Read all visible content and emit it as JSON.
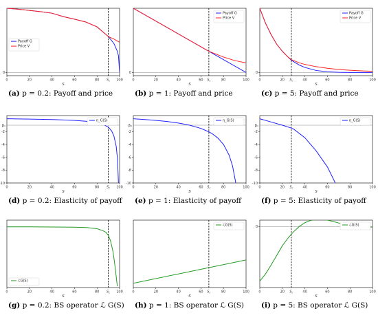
{
  "colors": {
    "blue": "#1f1fff",
    "red": "#ff2020",
    "green": "#229922",
    "grey": "#888888"
  },
  "chart_data": [
    {
      "type": "line",
      "caption": {
        "letter": "(a)",
        "text": "p = 0.2: Payoff and price"
      },
      "xlabel": "S",
      "xlim": [
        0,
        100
      ],
      "ylim": [
        -0.05,
        1.0
      ],
      "xticks": [
        0,
        20,
        40,
        60,
        80,
        100
      ],
      "xtick_labels": [
        "0",
        "20",
        "40",
        "60",
        "80",
        "100"
      ],
      "yticks": [
        0
      ],
      "ytick_labels": [
        "0"
      ],
      "hline": 0,
      "vline": {
        "x": 90,
        "label": "S_c"
      },
      "legend": {
        "position": "middle-left",
        "entries": [
          "Payoff G",
          "Price V"
        ]
      },
      "series": [
        {
          "name": "Payoff G",
          "color": "blue",
          "x": [
            0,
            10,
            20,
            30,
            40,
            50,
            60,
            70,
            80,
            90,
            95,
            98,
            99,
            100
          ],
          "y": [
            1.0,
            0.985,
            0.966,
            0.946,
            0.923,
            0.87,
            0.83,
            0.786,
            0.71,
            0.56,
            0.45,
            0.33,
            0.26,
            0
          ]
        },
        {
          "name": "Price V",
          "color": "red",
          "x": [
            0,
            10,
            20,
            30,
            40,
            50,
            60,
            70,
            80,
            90,
            95,
            100
          ],
          "y": [
            1.0,
            0.985,
            0.966,
            0.946,
            0.923,
            0.87,
            0.83,
            0.786,
            0.71,
            0.56,
            0.52,
            0.47
          ]
        }
      ]
    },
    {
      "type": "line",
      "caption": {
        "letter": "(b)",
        "text": "p = 1: Payoff and price"
      },
      "xlabel": "S",
      "xlim": [
        0,
        100
      ],
      "ylim": [
        -0.05,
        1.0
      ],
      "xticks": [
        0,
        20,
        40,
        60,
        80,
        100
      ],
      "xtick_labels": [
        "0",
        "20",
        "40",
        "60",
        "80",
        "100"
      ],
      "yticks": [
        0
      ],
      "ytick_labels": [
        "0"
      ],
      "hline": 0,
      "vline": {
        "x": 67,
        "label": "S_c"
      },
      "legend": {
        "position": "top-right",
        "entries": [
          "Payoff G",
          "Price V"
        ]
      },
      "series": [
        {
          "name": "Payoff G",
          "color": "blue",
          "x": [
            0,
            67,
            100
          ],
          "y": [
            1.0,
            0.33,
            0.0
          ]
        },
        {
          "name": "Price V",
          "color": "red",
          "x": [
            0,
            67,
            80,
            90,
            100
          ],
          "y": [
            1.0,
            0.33,
            0.24,
            0.185,
            0.15
          ]
        }
      ]
    },
    {
      "type": "line",
      "caption": {
        "letter": "(c)",
        "text": "p = 5: Payoff and price"
      },
      "xlabel": "S",
      "xlim": [
        0,
        100
      ],
      "ylim": [
        -0.05,
        1.0
      ],
      "xticks": [
        0,
        20,
        40,
        60,
        80,
        100
      ],
      "xtick_labels": [
        "0",
        "20",
        "40",
        "60",
        "80",
        "100"
      ],
      "yticks": [
        0
      ],
      "ytick_labels": [
        "0"
      ],
      "hline": 0,
      "vline": {
        "x": 28,
        "label": "S_c"
      },
      "legend": {
        "position": "top-right",
        "entries": [
          "Payoff G",
          "Price V"
        ]
      },
      "series": [
        {
          "name": "Payoff G",
          "color": "blue",
          "x": [
            0,
            5,
            10,
            15,
            20,
            25,
            28,
            35,
            40,
            50,
            60,
            70,
            80,
            90,
            100
          ],
          "y": [
            1.0,
            0.77,
            0.59,
            0.44,
            0.33,
            0.24,
            0.19,
            0.116,
            0.078,
            0.031,
            0.01,
            0.002,
            0.0,
            0.0,
            0.0
          ]
        },
        {
          "name": "Price V",
          "color": "red",
          "x": [
            0,
            5,
            10,
            15,
            20,
            25,
            28,
            35,
            40,
            50,
            60,
            70,
            80,
            90,
            100
          ],
          "y": [
            1.0,
            0.77,
            0.59,
            0.44,
            0.33,
            0.24,
            0.2,
            0.15,
            0.125,
            0.09,
            0.065,
            0.047,
            0.034,
            0.025,
            0.018
          ]
        }
      ]
    },
    {
      "type": "line",
      "caption": {
        "letter": "(d)",
        "text": "p = 0.2: Elasticity of payoff"
      },
      "xlabel": "S",
      "xlim": [
        0,
        100
      ],
      "ylim": [
        -10,
        0.5
      ],
      "xticks": [
        0,
        20,
        40,
        60,
        80,
        100
      ],
      "xtick_labels": [
        "0",
        "20",
        "40",
        "60",
        "80",
        "100"
      ],
      "yticks": [
        -10,
        -8,
        -6,
        -4,
        -2
      ],
      "ytick_labels": [
        "-10",
        "-8",
        "-6",
        "-4",
        "-2"
      ],
      "hline": -1,
      "hline_label": "β₁",
      "vline": {
        "x": 90,
        "label": "S_c"
      },
      "legend": {
        "position": "top-right",
        "entries": [
          "η_G(S)"
        ]
      },
      "series": [
        {
          "name": "η_G(S)",
          "color": "blue",
          "x": [
            0,
            20,
            40,
            60,
            70,
            80,
            85,
            90,
            93,
            95,
            97,
            98,
            98.5,
            99
          ],
          "y": [
            0,
            -0.05,
            -0.12,
            -0.25,
            -0.38,
            -0.62,
            -0.85,
            -1.3,
            -1.9,
            -2.7,
            -4.3,
            -6.0,
            -7.8,
            -10
          ]
        }
      ]
    },
    {
      "type": "line",
      "caption": {
        "letter": "(e)",
        "text": "p = 1: Elasticity of payoff"
      },
      "xlabel": "S",
      "xlim": [
        0,
        100
      ],
      "ylim": [
        -10,
        0.5
      ],
      "xticks": [
        0,
        20,
        40,
        60,
        80,
        100
      ],
      "xtick_labels": [
        "0",
        "20",
        "40",
        "60",
        "80",
        "100"
      ],
      "yticks": [
        -10,
        -8,
        -6,
        -4,
        -2
      ],
      "ytick_labels": [
        "-10",
        "-8",
        "-6",
        "-4",
        "-2"
      ],
      "hline": -1,
      "hline_label": "β₁",
      "vline": {
        "x": 67,
        "label": "S_c"
      },
      "legend": {
        "position": "top-right",
        "entries": [
          "η_G(S)"
        ]
      },
      "series": [
        {
          "name": "η_G(S)",
          "color": "blue",
          "x": [
            0,
            10,
            20,
            30,
            40,
            50,
            60,
            67,
            70,
            75,
            80,
            85,
            88,
            90.9
          ],
          "y": [
            0,
            -0.11,
            -0.25,
            -0.43,
            -0.67,
            -1.0,
            -1.5,
            -2.03,
            -2.33,
            -3.0,
            -4.0,
            -5.67,
            -7.33,
            -10
          ]
        }
      ]
    },
    {
      "type": "line",
      "caption": {
        "letter": "(f)",
        "text": "p = 5: Elasticity of payoff"
      },
      "xlabel": "S",
      "xlim": [
        0,
        100
      ],
      "ylim": [
        -10,
        0.5
      ],
      "xticks": [
        0,
        20,
        40,
        60,
        80,
        100
      ],
      "xtick_labels": [
        "0",
        "20",
        "40",
        "60",
        "80",
        "100"
      ],
      "yticks": [
        -10,
        -8,
        -6,
        -4,
        -2
      ],
      "ytick_labels": [
        "-10",
        "-8",
        "-6",
        "-4",
        "-2"
      ],
      "hline": -1,
      "hline_label": "β₁",
      "vline": {
        "x": 28,
        "label": "S_c"
      },
      "legend": {
        "position": "top-right",
        "entries": [
          "η_G(S)"
        ]
      },
      "series": [
        {
          "name": "η_G(S)",
          "color": "blue",
          "x": [
            0,
            10,
            20,
            28,
            30,
            40,
            50,
            60,
            67
          ],
          "y": [
            0,
            -0.5,
            -1.0,
            -1.45,
            -1.6,
            -2.95,
            -5.0,
            -7.5,
            -10
          ]
        }
      ]
    },
    {
      "type": "line",
      "caption": {
        "letter": "(g)",
        "text": "p = 0.2: BS operator ℒ G(S)"
      },
      "xlabel": "S",
      "xlim": [
        0,
        100
      ],
      "ylim": [
        -1,
        0.1
      ],
      "xticks": [
        0,
        20,
        40,
        60,
        80,
        100
      ],
      "xtick_labels": [
        "0",
        "20",
        "40",
        "60",
        "80",
        "100"
      ],
      "yticks": [],
      "ytick_labels": [],
      "vline": {
        "x": 90,
        "label": "S_c"
      },
      "legend": {
        "position": "bottom-left",
        "entries": [
          "ℒG(S)"
        ]
      },
      "series": [
        {
          "name": "ℒG(S)",
          "color": "green",
          "x": [
            0,
            20,
            40,
            60,
            70,
            80,
            85,
            88,
            90,
            92,
            94,
            95,
            96,
            97,
            98
          ],
          "y": [
            -0.01,
            -0.01,
            -0.012,
            -0.015,
            -0.02,
            -0.04,
            -0.07,
            -0.1,
            -0.15,
            -0.24,
            -0.4,
            -0.52,
            -0.66,
            -0.82,
            -0.98
          ]
        }
      ]
    },
    {
      "type": "line",
      "caption": {
        "letter": "(h)",
        "text": "p = 1: BS operator ℒ G(S)"
      },
      "xlabel": "S",
      "xlim": [
        0,
        100
      ],
      "ylim": [
        -1,
        0.1
      ],
      "xticks": [
        0,
        20,
        40,
        60,
        80,
        100
      ],
      "xtick_labels": [
        "0",
        "20",
        "40",
        "60",
        "80",
        "100"
      ],
      "yticks": [],
      "ytick_labels": [],
      "vline": {
        "x": 67,
        "label": "S_c"
      },
      "legend": {
        "position": "top-right",
        "entries": [
          "ℒG(S)"
        ]
      },
      "series": [
        {
          "name": "ℒG(S)",
          "color": "green",
          "x": [
            0,
            100
          ],
          "y": [
            -0.93,
            -0.55
          ]
        }
      ]
    },
    {
      "type": "line",
      "caption": {
        "letter": "(i)",
        "text": "p = 5: BS operator ℒ G(S)"
      },
      "xlabel": "S",
      "xlim": [
        0,
        100
      ],
      "ylim": [
        -0.95,
        0.1
      ],
      "xticks": [
        0,
        20,
        40,
        60,
        80,
        100
      ],
      "xtick_labels": [
        "0",
        "20",
        "40",
        "60",
        "80",
        "100"
      ],
      "yticks": [
        0
      ],
      "ytick_labels": [
        "0"
      ],
      "hline": 0,
      "vline": {
        "x": 28,
        "label": "S_c"
      },
      "legend": {
        "position": "top-right",
        "entries": [
          "ℒG(S)"
        ]
      },
      "series": [
        {
          "name": "ℒG(S)",
          "color": "green",
          "x": [
            0,
            5,
            10,
            15,
            20,
            25,
            28,
            30,
            35,
            40,
            45,
            50,
            55,
            60,
            65,
            70,
            75,
            80,
            85,
            90,
            95,
            100
          ],
          "y": [
            -0.85,
            -0.74,
            -0.6,
            -0.45,
            -0.3,
            -0.18,
            -0.12,
            -0.08,
            0.0,
            0.06,
            0.095,
            0.11,
            0.11,
            0.1,
            0.08,
            0.055,
            0.03,
            0.01,
            -0.005,
            -0.01,
            -0.01,
            -0.008
          ]
        }
      ]
    }
  ]
}
